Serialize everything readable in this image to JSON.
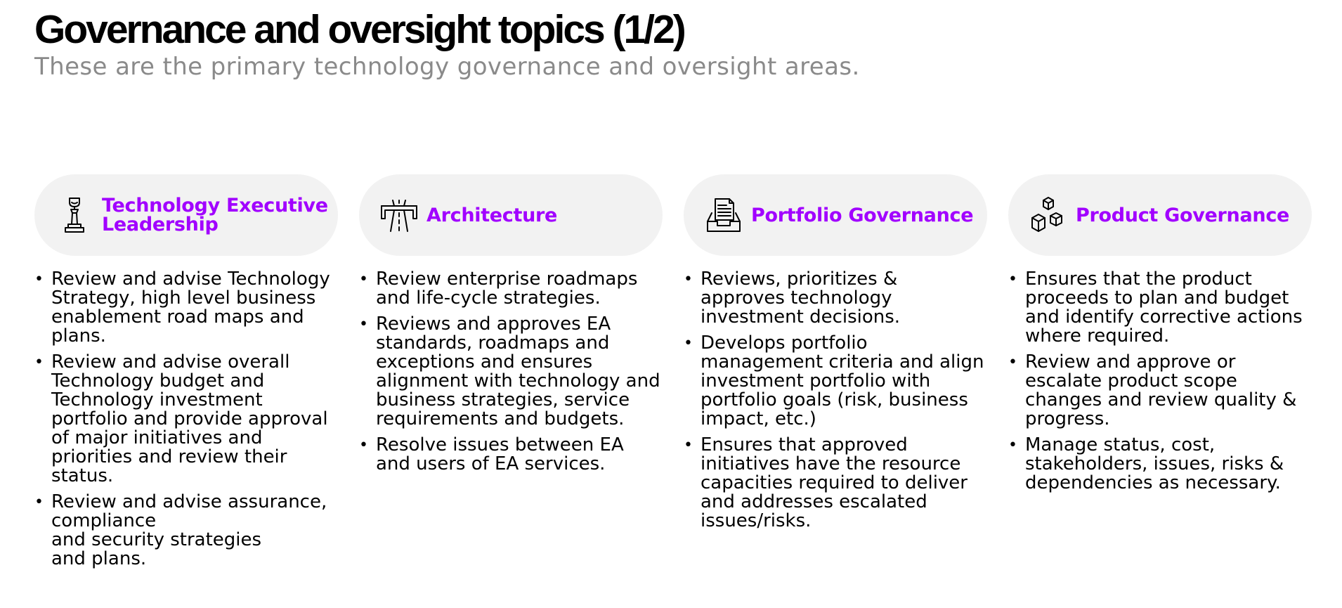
{
  "page": {
    "title": "Governance and oversight topics (1/2)",
    "subtitle": "These are the primary technology governance and oversight areas."
  },
  "colors": {
    "accent": "#a100ff",
    "header_background": "#f2f2f2",
    "subtitle": "#8a8a8a",
    "text": "#000000"
  },
  "topics": [
    {
      "title": "Technology Executive Leadership",
      "icon": "trophy-icon",
      "bullets": [
        "Review and advise Technology Strategy, high level business enablement road maps and plans.",
        "Review and advise overall Technology budget and Technology investment portfolio and provide approval of major initiatives and priorities and review their status.",
        "Review and advise assurance, compliance\nand security strategies\nand plans."
      ]
    },
    {
      "title": "Architecture",
      "icon": "road-icon",
      "bullets": [
        "Review enterprise roadmaps and life-cycle strategies.",
        "Reviews and approves EA standards, roadmaps and exceptions and ensures alignment with technology and business strategies, service requirements and budgets.",
        "Resolve issues between EA and users of EA services."
      ]
    },
    {
      "title": "Portfolio Governance",
      "icon": "document-tray-icon",
      "bullets": [
        "Reviews, prioritizes & approves technology investment decisions.",
        "Develops portfolio management criteria and align investment portfolio with portfolio goals (risk, business impact, etc.)",
        "Ensures that approved initiatives have the resource capacities required to deliver and addresses escalated issues/risks."
      ]
    },
    {
      "title": "Product Governance",
      "icon": "cubes-icon",
      "bullets": [
        "Ensures that the product proceeds to plan and budget and identify corrective actions where required.",
        "Review and approve or escalate product scope changes and review quality & progress.",
        "Manage status, cost, stakeholders, issues, risks & dependencies as necessary."
      ]
    }
  ]
}
